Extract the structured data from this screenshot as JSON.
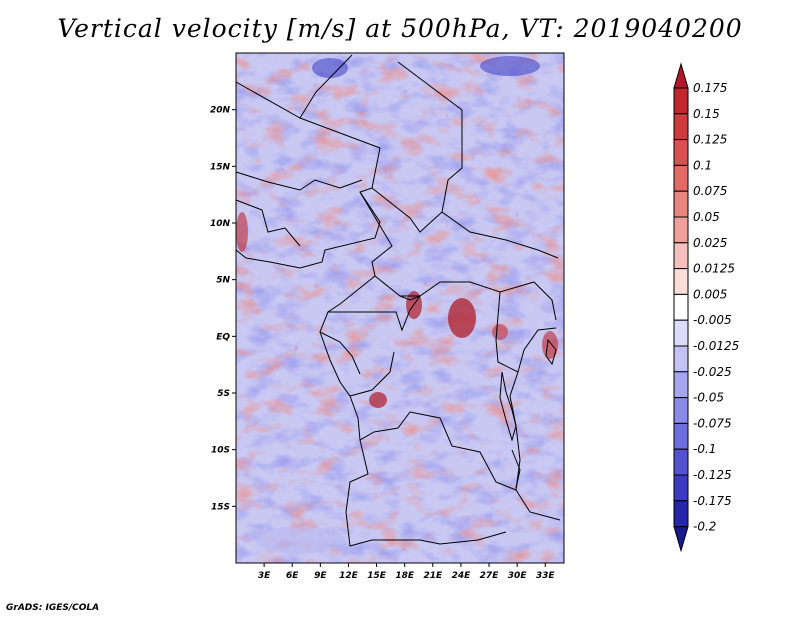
{
  "title": "Vertical velocity [m/s] at 500hPa, VT: 2019040200",
  "credit": "GrADS: IGES/COLA",
  "map": {
    "lat_labels": [
      "20N",
      "15N",
      "10N",
      "5N",
      "EQ",
      "5S",
      "10S",
      "15S"
    ],
    "lat_values": [
      20,
      15,
      10,
      5,
      0,
      -5,
      -10,
      -15
    ],
    "lon_labels": [
      "3E",
      "6E",
      "9E",
      "12E",
      "15E",
      "18E",
      "21E",
      "24E",
      "27E",
      "30E",
      "33E"
    ],
    "lon_values": [
      3,
      6,
      9,
      12,
      15,
      18,
      21,
      24,
      27,
      30,
      33
    ],
    "lon_range": [
      0,
      35
    ],
    "lat_range": [
      -20,
      25
    ]
  },
  "colorbar": {
    "labels": [
      "0.175",
      "0.15",
      "0.125",
      "0.1",
      "0.075",
      "0.05",
      "0.025",
      "0.0125",
      "0.005",
      "-0.005",
      "-0.0125",
      "-0.025",
      "-0.05",
      "-0.075",
      "-0.1",
      "-0.125",
      "-0.175",
      "-0.2"
    ],
    "colors": [
      "#b2182b",
      "#c1272d",
      "#cf3b3b",
      "#da5050",
      "#e36a64",
      "#ea8580",
      "#f0a09b",
      "#f5c0bb",
      "#fadcd8",
      "#ffffff",
      "#dcdcfa",
      "#c2c2f5",
      "#a6a6ef",
      "#8a8ae8",
      "#6e6ede",
      "#5252d2",
      "#3a3ac2",
      "#2626ad",
      "#1a1a8c"
    ]
  },
  "colors": {
    "warm": "#d8453f",
    "cool": "#5a5ad6",
    "land_border": "#000000"
  }
}
